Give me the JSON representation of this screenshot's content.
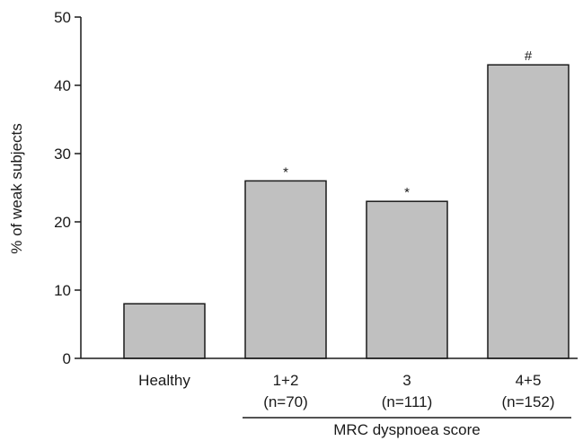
{
  "chart_data": {
    "type": "bar",
    "categories": [
      {
        "label": "Healthy",
        "sublabel": ""
      },
      {
        "label": "1+2",
        "sublabel": "(n=70)"
      },
      {
        "label": "3",
        "sublabel": "(n=111)"
      },
      {
        "label": "4+5",
        "sublabel": "(n=152)"
      }
    ],
    "values": [
      8,
      26,
      23,
      43
    ],
    "annotations": [
      "",
      "*",
      "*",
      "#"
    ],
    "ylabel": "% of weak subjects",
    "group_label": "MRC dyspnoea score",
    "group_spans": [
      "1+2",
      "4+5"
    ],
    "ylim": [
      0,
      50
    ],
    "yticks": [
      0,
      10,
      20,
      30,
      40,
      50
    ],
    "bar_color": "#c0c0c0",
    "bar_edge_color": "#1a1a1a",
    "grid": false,
    "legend": "none"
  }
}
